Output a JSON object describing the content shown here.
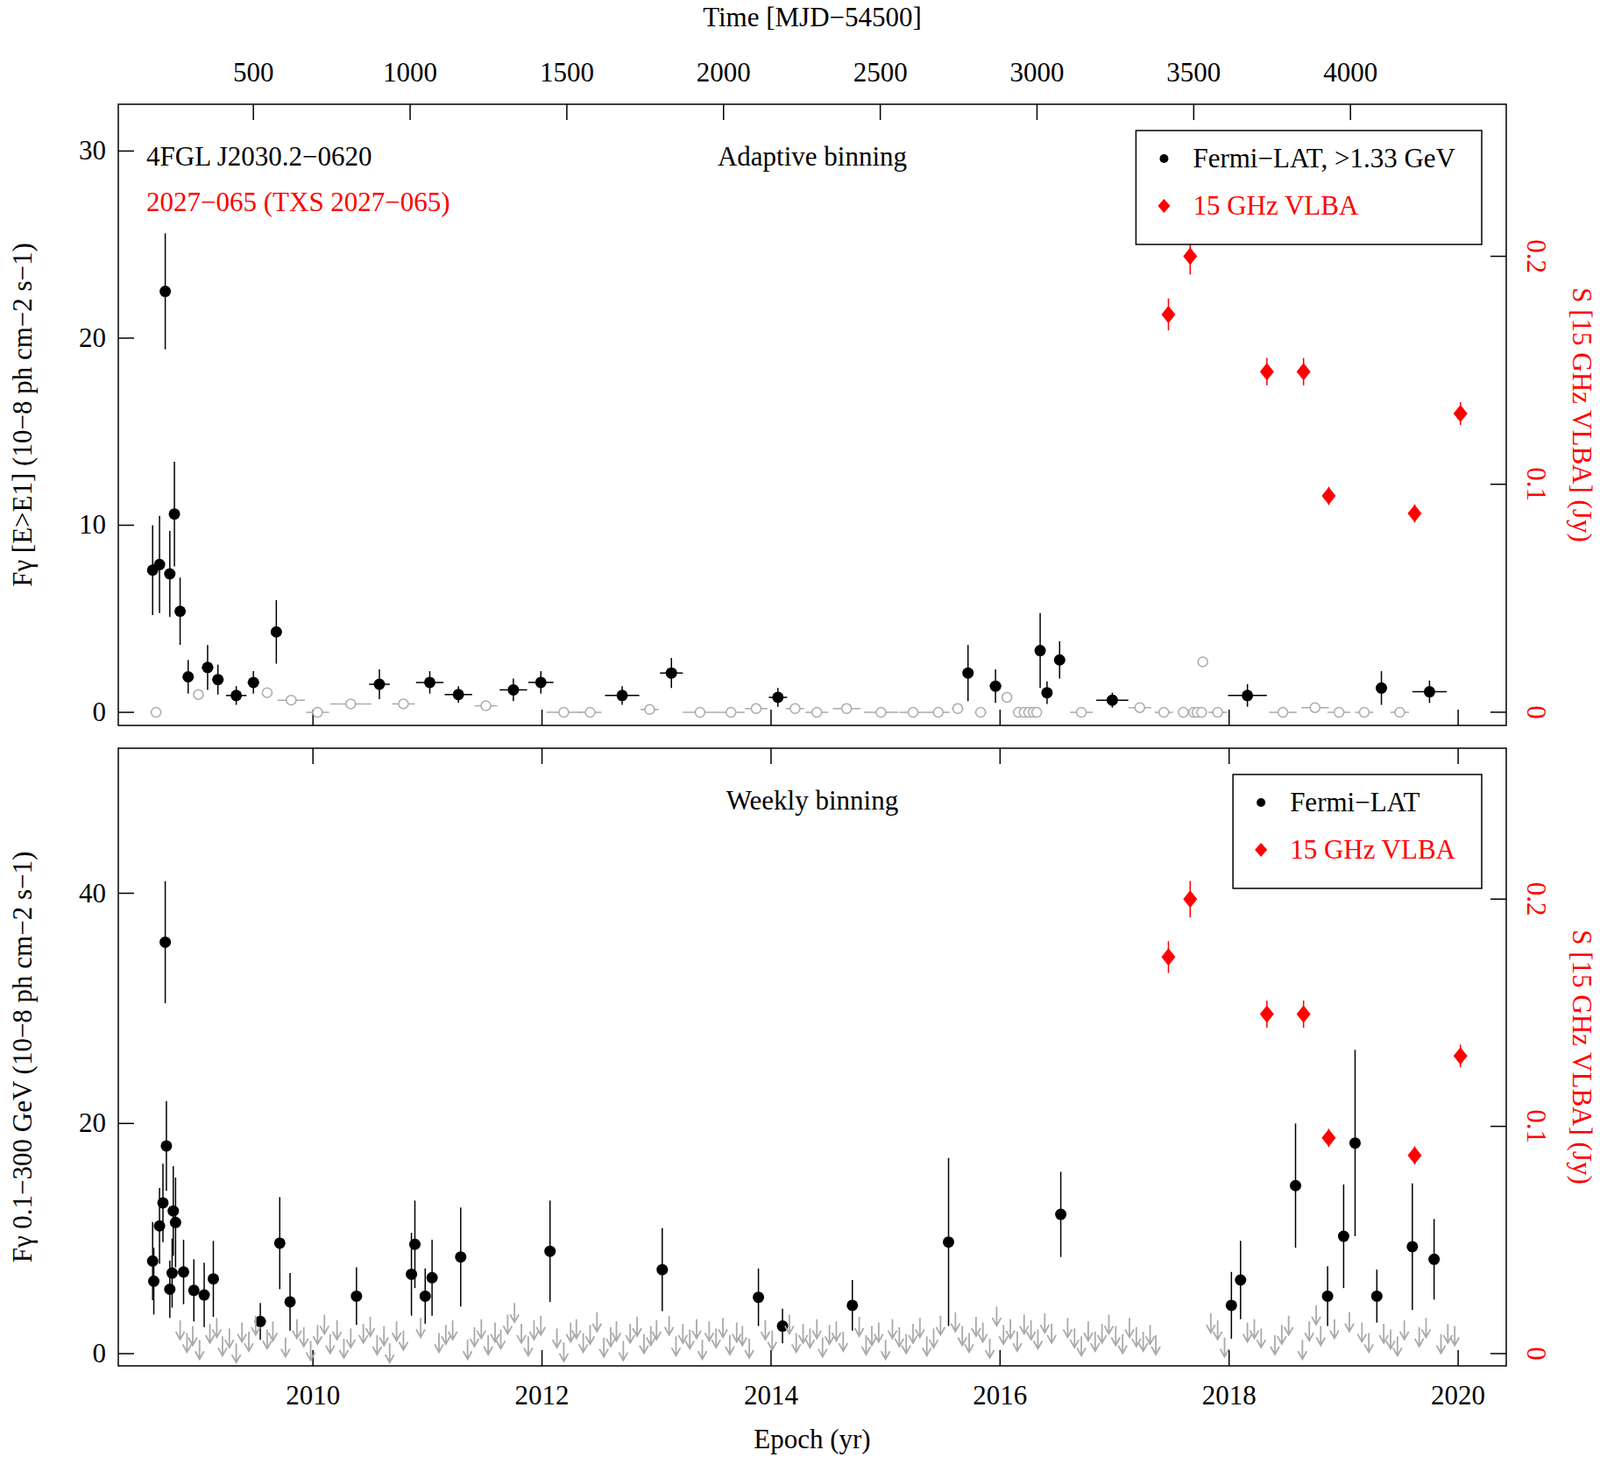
{
  "chart_data": [
    {
      "type": "scatter",
      "title": "Adaptive binning",
      "annotations": [
        {
          "text": "4FGL J2030.2−0620",
          "color": "#000000"
        },
        {
          "text": "2027−065 (TXS 2027−065)",
          "color": "#ff0000"
        }
      ],
      "x2_label": "Time [MJD−54500]",
      "y_label": "Fγ [E>E1] (10−8 ph cm−2 s−1)",
      "y2_label": "S [15 GHz VLBA] (Jy)",
      "xlim": [
        2008.3,
        2020.42
      ],
      "x2lim": [
        69,
        4497
      ],
      "x2ticks": [
        500,
        1000,
        1500,
        2000,
        2500,
        3000,
        3500,
        4000
      ],
      "ylim": [
        -0.7,
        32.5
      ],
      "yticks": [
        0,
        10,
        20,
        30
      ],
      "y2lim": [
        -0.0058,
        0.2667
      ],
      "y2ticks": [
        0,
        0.1,
        0.2
      ],
      "legend": "upper right",
      "series": [
        {
          "name": "Fermi−LAT, >1.33 GeV",
          "color": "#000000",
          "marker": "circle",
          "x": [
            2008.6,
            2008.66,
            2008.71,
            2008.75,
            2008.79,
            2008.84,
            2008.91,
            2009.08,
            2009.17,
            2009.33,
            2009.48,
            2009.68,
            2010.58,
            2011.02,
            2011.27,
            2011.75,
            2011.99,
            2012.7,
            2013.13,
            2014.06,
            2015.72,
            2015.96,
            2016.35,
            2016.41,
            2016.52,
            2016.98,
            2018.16,
            2019.33,
            2019.75
          ],
          "values": [
            7.6,
            7.9,
            22.5,
            7.4,
            10.6,
            5.4,
            1.9,
            2.4,
            1.75,
            0.9,
            1.6,
            4.3,
            1.5,
            1.6,
            0.95,
            1.2,
            1.6,
            0.9,
            2.1,
            0.8,
            2.1,
            1.4,
            3.3,
            1.05,
            2.8,
            0.65,
            0.9,
            1.3,
            1.1
          ],
          "errors": [
            2.4,
            2.6,
            3.1,
            2.3,
            2.8,
            1.8,
            0.9,
            1.2,
            0.8,
            0.5,
            0.6,
            1.7,
            0.8,
            0.6,
            0.45,
            0.6,
            0.6,
            0.5,
            0.8,
            0.5,
            1.5,
            0.9,
            2.0,
            0.6,
            1.0,
            0.4,
            0.6,
            0.9,
            0.6
          ],
          "xerr": [
            0.02,
            0.02,
            0.02,
            0.02,
            0.02,
            0.03,
            0.03,
            0.05,
            0.05,
            0.09,
            0.05,
            0.03,
            0.09,
            0.12,
            0.12,
            0.12,
            0.11,
            0.15,
            0.1,
            0.08,
            0.03,
            0.05,
            0.02,
            0.02,
            0.03,
            0.14,
            0.17,
            0.05,
            0.15
          ]
        },
        {
          "color": "#aaaaaa",
          "marker": "open circle",
          "x": [
            2008.63,
            2009.0,
            2009.6,
            2009.81,
            2010.04,
            2010.33,
            2010.79,
            2011.51,
            2012.19,
            2012.42,
            2012.94,
            2013.38,
            2013.65,
            2013.87,
            2014.21,
            2014.4,
            2014.66,
            2014.96,
            2015.24,
            2015.46,
            2015.63,
            2015.83,
            2016.06,
            2016.16,
            2016.21,
            2016.25,
            2016.29,
            2016.32,
            2016.71,
            2017.22,
            2017.43,
            2017.6,
            2017.69,
            2017.72,
            2017.76,
            2017.77,
            2017.9,
            2018.47,
            2018.75,
            2018.96,
            2019.18,
            2019.49
          ],
          "values": [
            0,
            0.95,
            1.05,
            0.65,
            0,
            0.45,
            0.45,
            0.35,
            0,
            0,
            0.15,
            0,
            0,
            0.2,
            0.2,
            0,
            0.2,
            0,
            0,
            0,
            0.2,
            0,
            0.8,
            0,
            0,
            0,
            0,
            0,
            0,
            0.25,
            0,
            0,
            0,
            0,
            0,
            2.7,
            0,
            0,
            0.25,
            0,
            0,
            0
          ],
          "xerr": [
            0.02,
            0.03,
            0.04,
            0.12,
            0.1,
            0.18,
            0.1,
            0.1,
            0.15,
            0.1,
            0.08,
            0.15,
            0.12,
            0.1,
            0.08,
            0.1,
            0.12,
            0.15,
            0.12,
            0.1,
            0.05,
            0.05,
            0.04,
            0.02,
            0.02,
            0.02,
            0.02,
            0.02,
            0.1,
            0.1,
            0.08,
            0.04,
            0.03,
            0.03,
            0.02,
            0.02,
            0.08,
            0.12,
            0.12,
            0.1,
            0.08,
            0.08
          ]
        },
        {
          "name": "15 GHz VLBA",
          "color": "#ff0000",
          "marker": "diamond",
          "axis": "y2",
          "x": [
            2017.47,
            2017.66,
            2018.33,
            2018.65,
            2018.87,
            2019.62,
            2020.02
          ],
          "values": [
            0.1745,
            0.2,
            0.1494,
            0.1494,
            0.0949,
            0.0872,
            0.131
          ],
          "errors": [
            0.007,
            0.008,
            0.006,
            0.006,
            0.004,
            0.004,
            0.005
          ]
        }
      ]
    },
    {
      "type": "scatter",
      "title": "Weekly binning",
      "x_label": "Epoch (yr)",
      "y_label": "Fγ 0.1−300 GeV (10−8 ph cm−2 s−1)",
      "y2_label": "S [15 GHz VLBA] (Jy)",
      "xlim": [
        2008.3,
        2020.42
      ],
      "xticks": [
        2010,
        2012,
        2014,
        2016,
        2018,
        2020
      ],
      "ylim": [
        -1.06,
        52.6
      ],
      "yticks": [
        0,
        20,
        40
      ],
      "y2lim": [
        -0.0054,
        0.2664
      ],
      "y2ticks": [
        0,
        0.1,
        0.2
      ],
      "legend": "upper right",
      "series": [
        {
          "name": "Fermi−LAT",
          "color": "#000000",
          "marker": "circle",
          "x": [
            2008.6,
            2008.61,
            2008.66,
            2008.69,
            2008.71,
            2008.72,
            2008.75,
            2008.77,
            2008.78,
            2008.8,
            2008.87,
            2008.96,
            2009.05,
            2009.13,
            2009.54,
            2009.71,
            2009.8,
            2010.38,
            2010.86,
            2010.89,
            2010.98,
            2011.04,
            2011.29,
            2012.07,
            2013.05,
            2013.89,
            2014.1,
            2014.71,
            2015.55,
            2016.53,
            2018.02,
            2018.1,
            2018.58,
            2018.86,
            2019.0,
            2019.1,
            2019.29,
            2019.6,
            2019.79
          ],
          "values": [
            8.05,
            6.3,
            11.1,
            13.1,
            35.75,
            18.05,
            5.6,
            7.0,
            12.4,
            11.4,
            7.1,
            5.5,
            5.1,
            6.5,
            2.8,
            9.6,
            4.5,
            5.0,
            6.9,
            9.5,
            5.0,
            6.6,
            8.4,
            8.9,
            7.3,
            4.9,
            2.4,
            4.2,
            9.7,
            12.1,
            4.2,
            6.4,
            14.6,
            5.0,
            10.2,
            18.3,
            5.0,
            9.3,
            8.2
          ],
          "errors": [
            3.4,
            2.9,
            3.3,
            3.4,
            5.3,
            3.9,
            2.5,
            3.0,
            3.9,
            3.9,
            2.8,
            2.7,
            2.8,
            3.3,
            1.6,
            4.0,
            2.5,
            2.5,
            3.6,
            3.8,
            2.4,
            3.3,
            4.3,
            4.4,
            3.6,
            2.5,
            1.5,
            2.2,
            7.3,
            3.7,
            2.9,
            3.4,
            5.4,
            2.6,
            4.5,
            8.1,
            2.3,
            5.5,
            3.5
          ]
        },
        {
          "color": "#aaaaaa",
          "marker": "arrow",
          "x": [
            2008.84,
            2008.9,
            2008.95,
            2009.01,
            2009.1,
            2009.16,
            2009.21,
            2009.27,
            2009.33,
            2009.38,
            2009.44,
            2009.5,
            2009.6,
            2009.65,
            2009.76,
            2009.86,
            2009.92,
            2009.98,
            2010.04,
            2010.1,
            2010.15,
            2010.21,
            2010.27,
            2010.33,
            2010.44,
            2010.5,
            2010.56,
            2010.62,
            2010.67,
            2010.73,
            2010.79,
            2010.94,
            2011.1,
            2011.16,
            2011.22,
            2011.35,
            2011.41,
            2011.47,
            2011.53,
            2011.59,
            2011.64,
            2011.7,
            2011.76,
            2011.82,
            2011.88,
            2011.93,
            2011.99,
            2012.13,
            2012.19,
            2012.25,
            2012.3,
            2012.36,
            2012.42,
            2012.48,
            2012.54,
            2012.6,
            2012.65,
            2012.71,
            2012.77,
            2012.83,
            2012.89,
            2012.95,
            2013.0,
            2013.11,
            2013.17,
            2013.23,
            2013.29,
            2013.35,
            2013.4,
            2013.46,
            2013.52,
            2013.58,
            2013.64,
            2013.7,
            2013.75,
            2013.81,
            2013.95,
            2014.01,
            2014.16,
            2014.22,
            2014.28,
            2014.34,
            2014.4,
            2014.45,
            2014.51,
            2014.57,
            2014.63,
            2014.77,
            2014.83,
            2014.88,
            2014.94,
            2015.0,
            2015.06,
            2015.12,
            2015.18,
            2015.24,
            2015.3,
            2015.36,
            2015.42,
            2015.48,
            2015.61,
            2015.67,
            2015.73,
            2015.79,
            2015.85,
            2015.91,
            2015.97,
            2016.03,
            2016.09,
            2016.15,
            2016.21,
            2016.27,
            2016.33,
            2016.39,
            2016.45,
            2016.59,
            2016.65,
            2016.71,
            2016.77,
            2016.83,
            2016.89,
            2016.95,
            2017.01,
            2017.07,
            2017.13,
            2017.19,
            2017.25,
            2017.31,
            2017.36,
            2017.84,
            2017.9,
            2017.96,
            2018.16,
            2018.22,
            2018.28,
            2018.4,
            2018.46,
            2018.52,
            2018.64,
            2018.7,
            2018.76,
            2018.8,
            2018.92,
            2019.05,
            2019.16,
            2019.22,
            2019.35,
            2019.41,
            2019.47,
            2019.53,
            2019.66,
            2019.72,
            2019.85,
            2019.91,
            2019.97
          ],
          "values": [
            2.9,
            1.8,
            2.4,
            1.2,
            2.6,
            3.1,
            1.5,
            2.2,
            0.9,
            2.7,
            1.9,
            3.3,
            2.1,
            2.8,
            1.4,
            3.0,
            2.3,
            1.1,
            2.5,
            3.4,
            1.7,
            2.9,
            1.3,
            2.2,
            2.6,
            3.2,
            1.6,
            2.4,
            0.9,
            2.8,
            2.0,
            3.1,
            1.8,
            2.5,
            2.9,
            1.2,
            2.3,
            3.0,
            1.6,
            2.7,
            2.1,
            3.4,
            4.4,
            2.6,
            1.5,
            2.9,
            3.3,
            2.2,
            1.0,
            2.7,
            3.0,
            1.8,
            2.5,
            3.6,
            1.4,
            2.3,
            2.8,
            1.1,
            2.6,
            3.2,
            1.7,
            2.4,
            2.9,
            3.3,
            1.5,
            2.6,
            2.1,
            3.0,
            1.2,
            2.8,
            2.2,
            3.1,
            1.6,
            2.7,
            2.4,
            1.3,
            2.9,
            2.0,
            3.4,
            1.8,
            2.6,
            2.2,
            3.0,
            1.4,
            2.5,
            2.8,
            1.9,
            3.2,
            1.6,
            2.4,
            2.7,
            1.2,
            3.0,
            2.3,
            1.7,
            2.6,
            3.1,
            1.5,
            2.2,
            3.3,
            3.6,
            2.4,
            1.8,
            3.2,
            2.7,
            1.3,
            4.1,
            2.5,
            3.0,
            1.9,
            3.4,
            2.9,
            2.1,
            3.5,
            2.6,
            3.1,
            2.2,
            1.5,
            2.8,
            1.9,
            2.6,
            3.4,
            2.4,
            1.7,
            3.1,
            2.3,
            1.9,
            2.5,
            1.6,
            3.5,
            2.9,
            1.4,
            2.7,
            3.0,
            2.2,
            1.6,
            2.5,
            3.3,
            1.2,
            2.8,
            4.2,
            2.4,
            3.0,
            3.6,
            2.7,
            1.8,
            2.6,
            2.1,
            1.5,
            2.9,
            2.3,
            3.1,
            1.7,
            2.6,
            2.4
          ]
        },
        {
          "name": "15 GHz VLBA",
          "color": "#ff0000",
          "marker": "diamond",
          "axis": "y2",
          "x": [
            2017.47,
            2017.66,
            2018.33,
            2018.65,
            2018.87,
            2019.62,
            2020.02
          ],
          "values": [
            0.1745,
            0.2,
            0.1494,
            0.1494,
            0.0949,
            0.0872,
            0.131
          ],
          "errors": [
            0.007,
            0.008,
            0.006,
            0.006,
            0.004,
            0.004,
            0.005
          ]
        }
      ]
    }
  ]
}
